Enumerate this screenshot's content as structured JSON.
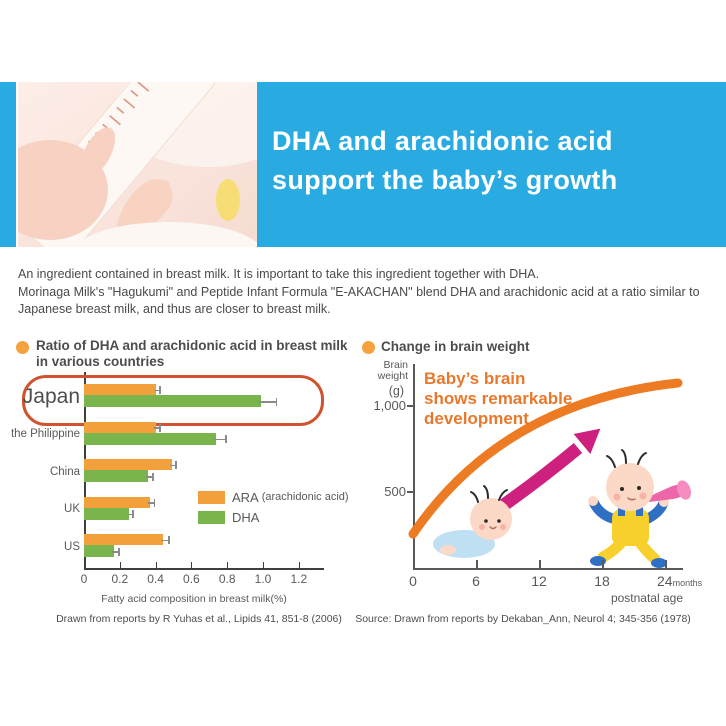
{
  "header": {
    "line1": "DHA and arachidonic acid",
    "line2": "support the baby’s growth"
  },
  "intro": {
    "line1": "An ingredient contained in breast milk. It is important to take this ingredient together with DHA.",
    "line2": "Morinaga Milk's \"Hagukumi\" and Peptide Infant Formula \"E-AKACHAN\" blend DHA and arachidonic acid at a ratio similar to",
    "line3": "Japanese breast milk, and thus are closer to breast milk."
  },
  "colors": {
    "banner_blue": "#29abe2",
    "ara_orange": "#f2a03c",
    "dha_green": "#7ab44d",
    "highlight_red": "#d0532f",
    "curve_orange": "#ed7b23",
    "arrow_magenta": "#ce207e",
    "annotation_orange": "#e8792c"
  },
  "chart_data": [
    {
      "type": "bar",
      "orientation": "horizontal",
      "title_line1": "Ratio of DHA and arachidonic acid in breast milk",
      "title_line2": "in various countries",
      "categories": [
        "Japan",
        "the Philippine",
        "China",
        "UK",
        "US"
      ],
      "series": [
        {
          "name": "ARA (arachidonic acid)",
          "color": "#f2a03c",
          "values": [
            0.4,
            0.4,
            0.49,
            0.37,
            0.44
          ],
          "errors": [
            0.02,
            0.02,
            0.02,
            0.02,
            0.03
          ]
        },
        {
          "name": "DHA",
          "color": "#7ab44d",
          "values": [
            0.99,
            0.74,
            0.36,
            0.25,
            0.17
          ],
          "errors": [
            0.08,
            0.05,
            0.02,
            0.02,
            0.02
          ]
        }
      ],
      "xlim": [
        0,
        1.3
      ],
      "x_ticks": [
        0,
        0.2,
        0.4,
        0.6,
        0.8,
        1.0,
        1.2
      ],
      "x_tick_labels": [
        "0",
        "0.2",
        "0.4",
        "0.6",
        "0.8",
        "1.0",
        "1.2"
      ],
      "xlabel": "Fatty acid composition in breast milk(%)",
      "highlight_category": "Japan",
      "legend": {
        "ara_label": "ARA",
        "ara_note": "(arachidonic acid)",
        "dha_label": "DHA"
      },
      "source": "Drawn from reports by R Yuhas et al., Lipids 41, 851-8 (2006)"
    },
    {
      "type": "line",
      "title": "Change in brain weight",
      "ylabel_line1": "Brain",
      "ylabel_line2": "weight",
      "ylabel_unit": "(g)",
      "y_tick_labels": [
        "1,000",
        "500"
      ],
      "x": [
        0,
        6,
        12,
        18,
        24
      ],
      "y": [
        350,
        660,
        870,
        1020,
        1130
      ],
      "x_tick_labels": [
        "0",
        "6",
        "12",
        "18",
        "24"
      ],
      "x_unit": "months",
      "xlabel": "postnatal age",
      "annotation_line1": "Baby’s brain",
      "annotation_line2": "shows remarkable",
      "annotation_line3": "development",
      "source": "Source: Drawn from reports by Dekaban_Ann, Neurol 4; 345-356 (1978)"
    }
  ]
}
